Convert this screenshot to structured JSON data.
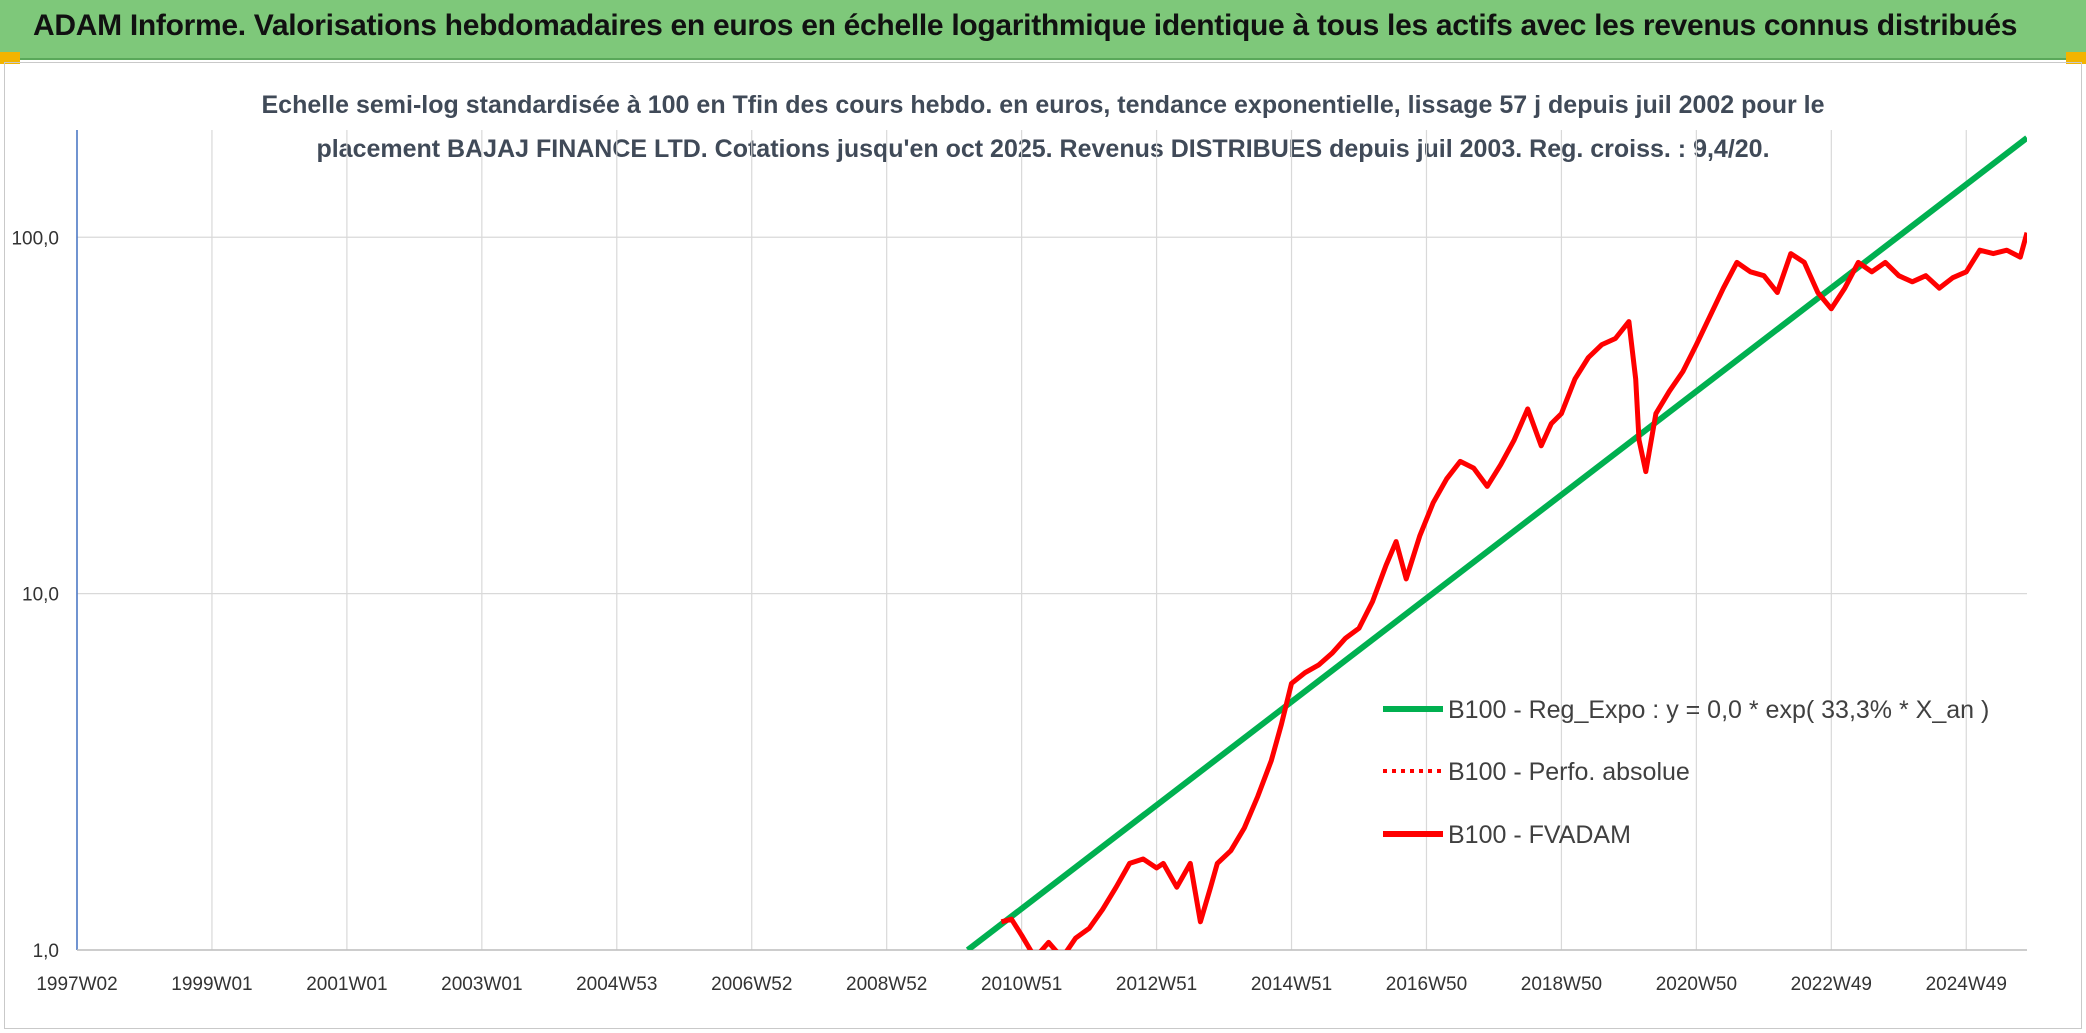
{
  "banner": {
    "title": "ADAM Informe. Valorisations hebdomadaires en euros en échelle logarithmique identique à tous les actifs avec les revenus connus distribués"
  },
  "colors": {
    "banner_bg": "#7ec87a",
    "regression": "#00b050",
    "fvadam": "#ff0000",
    "perfo": "#ff0000",
    "axis": "#4472c4",
    "grid": "#d9d9d9",
    "corner": "#f2b400"
  },
  "chart_data": {
    "type": "line",
    "title_lines": [
      "Echelle semi-log standardisée à 100 en Tfin des cours hebdo. en euros, tendance exponentielle, lissage 57 j depuis juil 2002 pour le",
      "placement BAJAJ FINANCE LTD. Cotations jusqu'en oct 2025. Revenus DISTRIBUES depuis juil 2003. Reg. croiss. : 9,4/20."
    ],
    "y_scale": "log",
    "ylim": [
      1,
      200
    ],
    "yticks": [
      1,
      10,
      100
    ],
    "ytick_labels": [
      "1,0",
      "10,0",
      "100,0"
    ],
    "xlim": [
      1997.0,
      2025.9
    ],
    "xticks": [
      1997.0,
      1999.0,
      2001.0,
      2003.0,
      2005.0,
      2007.0,
      2009.0,
      2011.0,
      2013.0,
      2015.0,
      2017.0,
      2019.0,
      2021.0,
      2023.0,
      2025.0
    ],
    "xtick_labels": [
      "1997W02",
      "1999W01",
      "2001W01",
      "2003W01",
      "2004W53",
      "2006W52",
      "2008W52",
      "2010W51",
      "2012W51",
      "2014W51",
      "2016W50",
      "2018W50",
      "2020W50",
      "2022W49",
      "2024W49"
    ],
    "grid": true,
    "legend_position": "right-middle",
    "legend": [
      {
        "label": "B100 - Reg_Expo : y = 0,0 * exp( 33,3% *  X_an )",
        "style": "solid",
        "color": "#00b050"
      },
      {
        "label": "B100 - Perfo. absolue",
        "style": "dotted",
        "color": "#ff0000"
      },
      {
        "label": "B100 - FVADAM",
        "style": "solid",
        "color": "#ff0000"
      }
    ],
    "series": [
      {
        "name": "B100 - Reg_Expo : y = 0,0 * exp( 33,3% *  X_an )",
        "x": [
          2010.2,
          2025.9
        ],
        "y": [
          1.0,
          190.0
        ]
      },
      {
        "name": "B100 - FVADAM",
        "x": [
          2010.7,
          2010.85,
          2011.0,
          2011.2,
          2011.4,
          2011.6,
          2011.8,
          2012.0,
          2012.2,
          2012.4,
          2012.6,
          2012.8,
          2013.0,
          2013.1,
          2013.3,
          2013.5,
          2013.65,
          2013.8,
          2013.9,
          2014.1,
          2014.3,
          2014.5,
          2014.7,
          2014.85,
          2015.0,
          2015.2,
          2015.4,
          2015.6,
          2015.8,
          2016.0,
          2016.2,
          2016.4,
          2016.55,
          2016.7,
          2016.9,
          2017.1,
          2017.3,
          2017.5,
          2017.7,
          2017.9,
          2018.1,
          2018.3,
          2018.5,
          2018.7,
          2018.85,
          2019.0,
          2019.2,
          2019.4,
          2019.6,
          2019.8,
          2020.0,
          2020.1,
          2020.15,
          2020.25,
          2020.4,
          2020.6,
          2020.8,
          2021.0,
          2021.2,
          2021.4,
          2021.6,
          2021.8,
          2022.0,
          2022.2,
          2022.4,
          2022.6,
          2022.8,
          2023.0,
          2023.2,
          2023.4,
          2023.6,
          2023.8,
          2024.0,
          2024.2,
          2024.4,
          2024.6,
          2024.8,
          2025.0,
          2025.2,
          2025.4,
          2025.6,
          2025.8,
          2025.9
        ],
        "y": [
          1.2,
          1.22,
          1.1,
          0.95,
          1.05,
          0.95,
          1.08,
          1.15,
          1.3,
          1.5,
          1.75,
          1.8,
          1.7,
          1.75,
          1.5,
          1.75,
          1.2,
          1.5,
          1.75,
          1.9,
          2.2,
          2.7,
          3.4,
          4.3,
          5.6,
          6.0,
          6.3,
          6.8,
          7.5,
          8.0,
          9.5,
          12.0,
          14.0,
          11.0,
          14.5,
          18.0,
          21.0,
          23.5,
          22.5,
          20.0,
          23.0,
          27.0,
          33.0,
          26.0,
          30.0,
          32.0,
          40.0,
          46.0,
          50.0,
          52.0,
          58.0,
          40.0,
          27.0,
          22.0,
          32.0,
          37.0,
          42.0,
          50.0,
          60.0,
          72.0,
          85.0,
          80.0,
          78.0,
          70.0,
          90.0,
          85.0,
          70.0,
          63.0,
          72.0,
          85.0,
          80.0,
          85.0,
          78.0,
          75.0,
          78.0,
          72.0,
          77.0,
          80.0,
          92.0,
          90.0,
          92.0,
          88.0,
          103.0
        ]
      }
    ]
  }
}
